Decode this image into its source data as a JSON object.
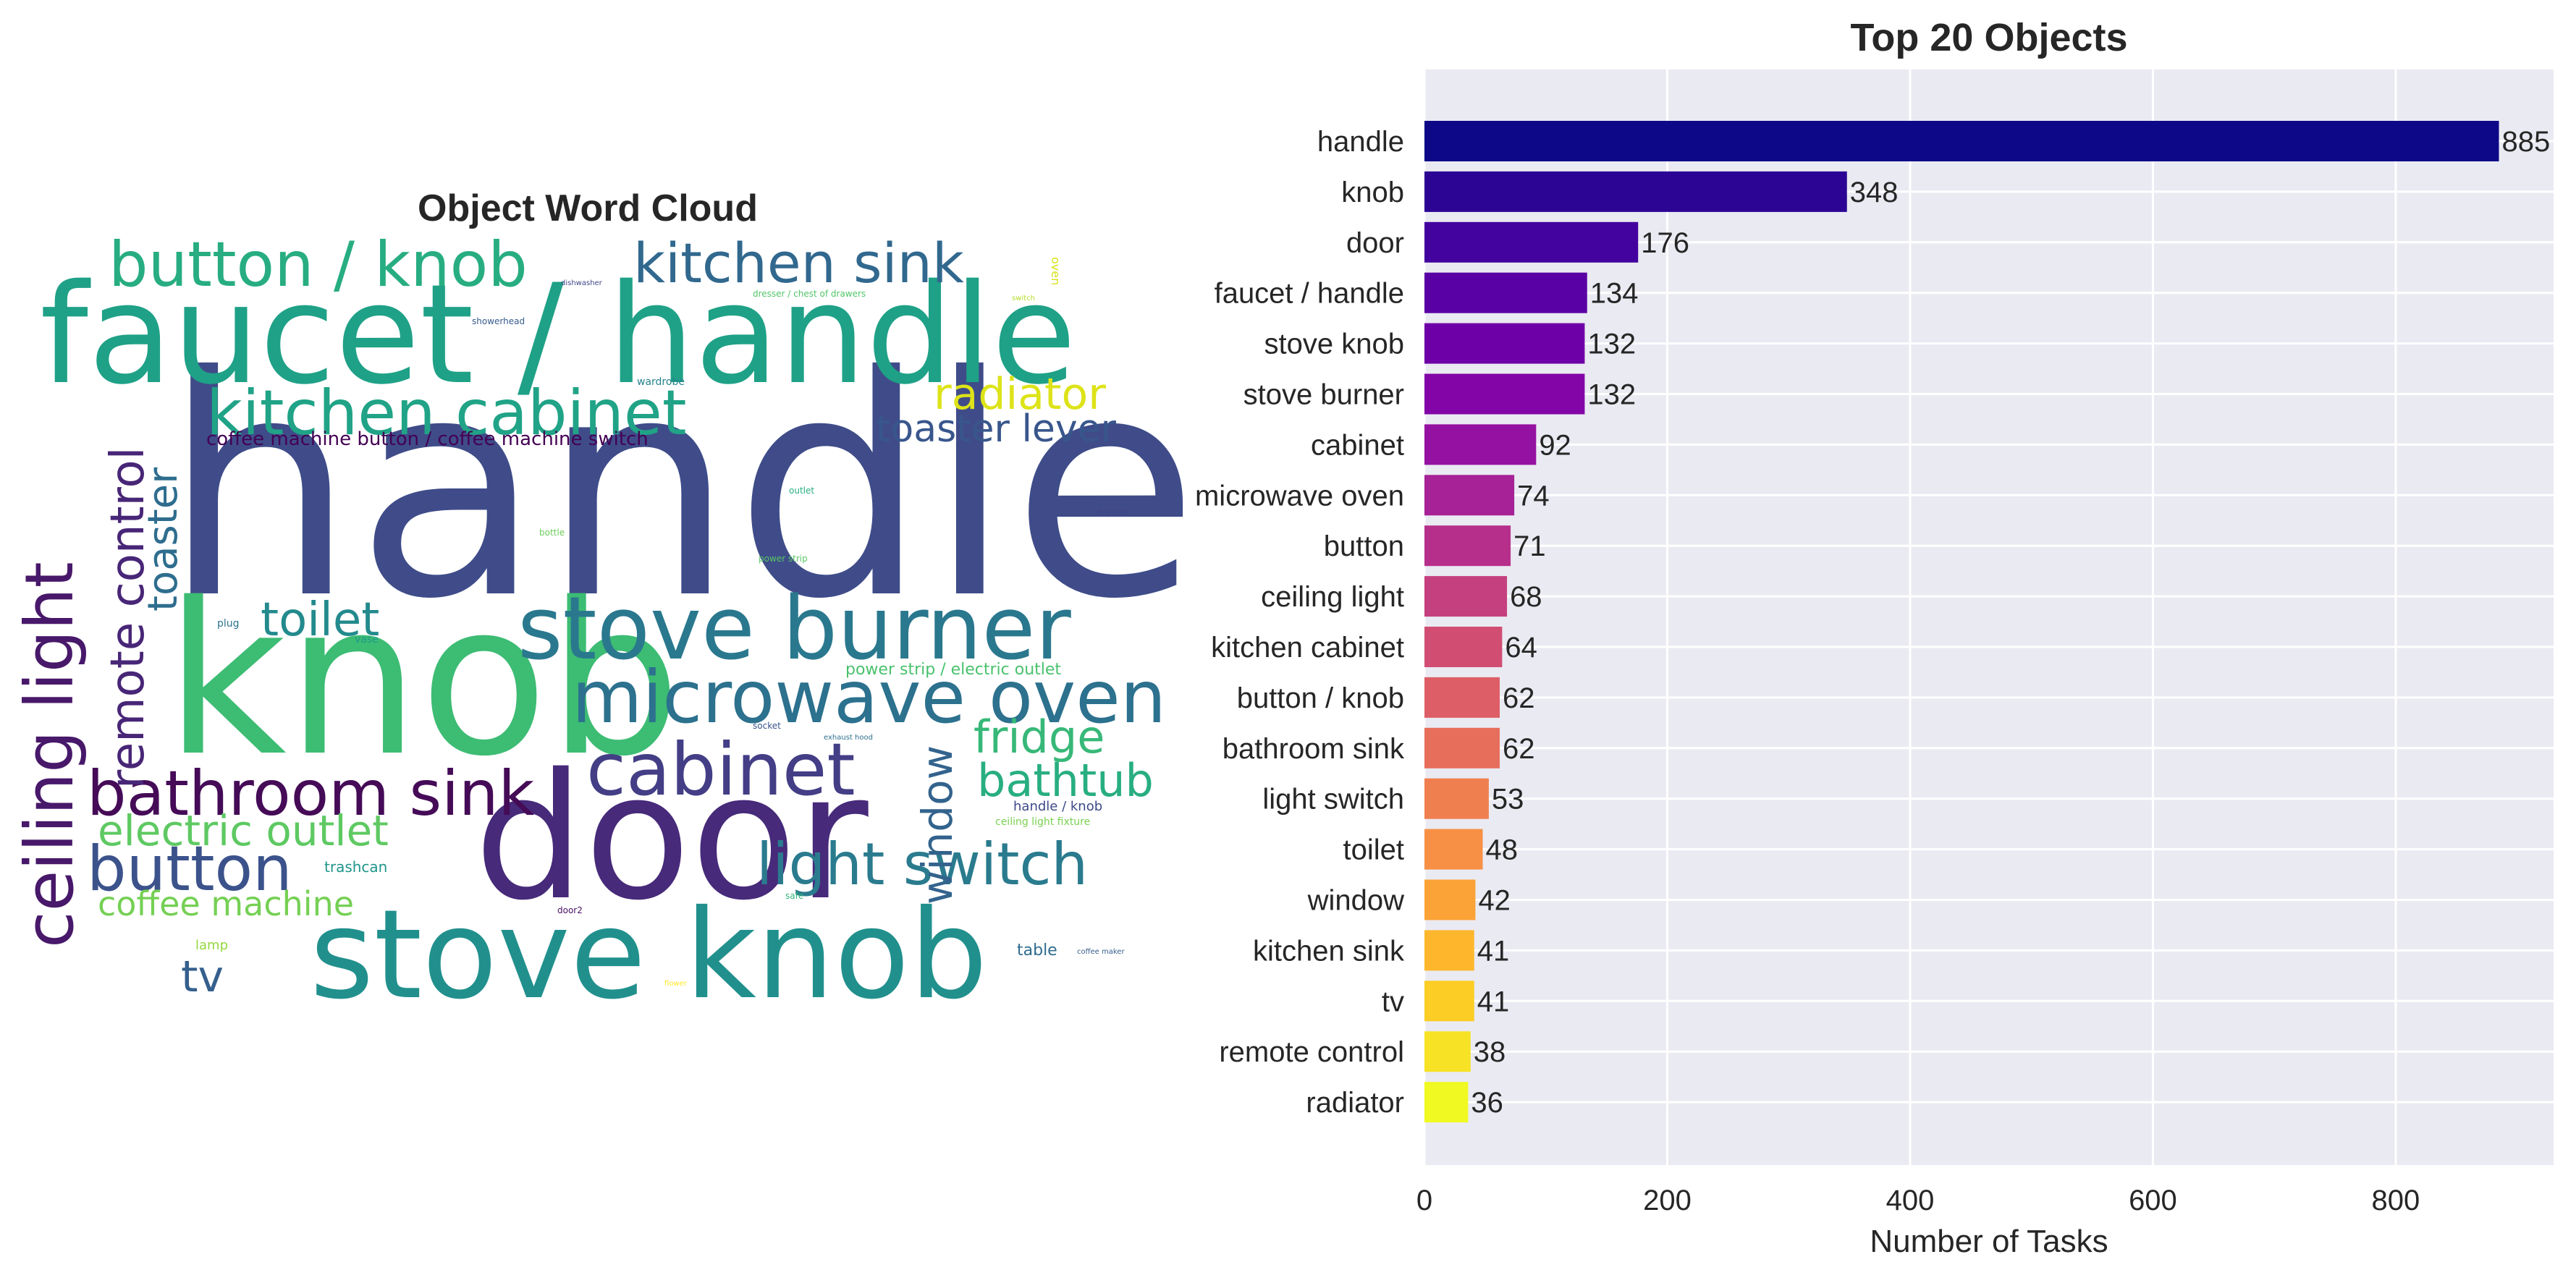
{
  "chart_data": [
    {
      "type": "wordcloud",
      "title": "Object Word Cloud",
      "words": [
        {
          "text": "handle",
          "color": "#3f4c89"
        },
        {
          "text": "faucet / handle",
          "color": "#1fa187"
        },
        {
          "text": "knob",
          "color": "#3dbc74"
        },
        {
          "text": "door",
          "color": "#472a7a"
        },
        {
          "text": "stove knob",
          "color": "#21908d"
        },
        {
          "text": "stove burner",
          "color": "#2a788e"
        },
        {
          "text": "microwave oven",
          "color": "#2c718e"
        },
        {
          "text": "ceiling light",
          "color": "#48186a"
        },
        {
          "text": "button / knob",
          "color": "#27ad81"
        },
        {
          "text": "kitchen sink",
          "color": "#31688e"
        },
        {
          "text": "kitchen cabinet",
          "color": "#20a386"
        },
        {
          "text": "cabinet",
          "color": "#433e85"
        },
        {
          "text": "bathroom sink",
          "color": "#450b57"
        },
        {
          "text": "button",
          "color": "#3b528b"
        },
        {
          "text": "light switch",
          "color": "#2a7b8e"
        },
        {
          "text": "radiator",
          "color": "#dde318"
        },
        {
          "text": "remote control",
          "color": "#482677"
        },
        {
          "text": "toaster lever",
          "color": "#39568c"
        },
        {
          "text": "toaster",
          "color": "#2e6d8e"
        },
        {
          "text": "toilet",
          "color": "#238a8d"
        },
        {
          "text": "window",
          "color": "#33638d"
        },
        {
          "text": "fridge",
          "color": "#37b878"
        },
        {
          "text": "bathtub",
          "color": "#28ae80"
        },
        {
          "text": "electric outlet",
          "color": "#5ec962"
        },
        {
          "text": "coffee machine",
          "color": "#75d054"
        },
        {
          "text": "tv",
          "color": "#355f8d"
        },
        {
          "text": "coffee machine button / coffee machine switch",
          "color": "#440154"
        },
        {
          "text": "power strip / electric outlet",
          "color": "#4ac16d"
        },
        {
          "text": "handle / knob",
          "color": "#3e4989"
        },
        {
          "text": "ceiling light fixture",
          "color": "#7ad151"
        },
        {
          "text": "table",
          "color": "#2f6c8e"
        },
        {
          "text": "trashcan",
          "color": "#1f958b"
        },
        {
          "text": "dishwasher",
          "color": "#404688"
        },
        {
          "text": "showerhead",
          "color": "#365c8d"
        },
        {
          "text": "wardrobe",
          "color": "#26828e"
        },
        {
          "text": "dresser / chest of drawers",
          "color": "#52c569"
        },
        {
          "text": "switch",
          "color": "#b5de2b"
        },
        {
          "text": "oven",
          "color": "#d8e219"
        },
        {
          "text": "outlet",
          "color": "#29af7f"
        },
        {
          "text": "dresser",
          "color": "#404387"
        },
        {
          "text": "bottle",
          "color": "#6ccd5a"
        },
        {
          "text": "power strip",
          "color": "#58c765"
        },
        {
          "text": "socket",
          "color": "#3a548c"
        },
        {
          "text": "exhaust hood",
          "color": "#2d708e"
        },
        {
          "text": "lamp",
          "color": "#95d840"
        },
        {
          "text": "door2",
          "color": "#471063"
        },
        {
          "text": "safe",
          "color": "#34b679"
        },
        {
          "text": "plug",
          "color": "#2c738e"
        },
        {
          "text": "vase",
          "color": "#1e9b8a"
        },
        {
          "text": "flower",
          "color": "#fde725"
        },
        {
          "text": "coffee maker",
          "color": "#355e8d"
        }
      ]
    },
    {
      "type": "bar",
      "orientation": "horizontal",
      "title": "Top 20 Objects",
      "xlabel": "Number of Tasks",
      "ylabel": "",
      "xlim": [
        0,
        930
      ],
      "xticks": [
        0,
        200,
        400,
        600,
        800
      ],
      "grid": true,
      "categories": [
        "handle",
        "knob",
        "door",
        "faucet / handle",
        "stove knob",
        "stove burner",
        "cabinet",
        "microwave oven",
        "button",
        "ceiling light",
        "kitchen cabinet",
        "button / knob",
        "bathroom sink",
        "light switch",
        "toilet",
        "window",
        "kitchen sink",
        "tv",
        "remote control",
        "radiator"
      ],
      "values": [
        885,
        348,
        176,
        134,
        132,
        132,
        92,
        74,
        71,
        68,
        64,
        62,
        62,
        53,
        48,
        42,
        41,
        41,
        38,
        36
      ],
      "colors": [
        "#0d0887",
        "#2c0594",
        "#43039e",
        "#5901a5",
        "#6e00a8",
        "#8305a7",
        "#9511a1",
        "#a72197",
        "#b6308b",
        "#c5407e",
        "#d14e72",
        "#dd5e66",
        "#e76e5b",
        "#f07f4f",
        "#f79044",
        "#fca338",
        "#feb72d",
        "#fccd25",
        "#f7e225",
        "#f0f921"
      ]
    }
  ]
}
